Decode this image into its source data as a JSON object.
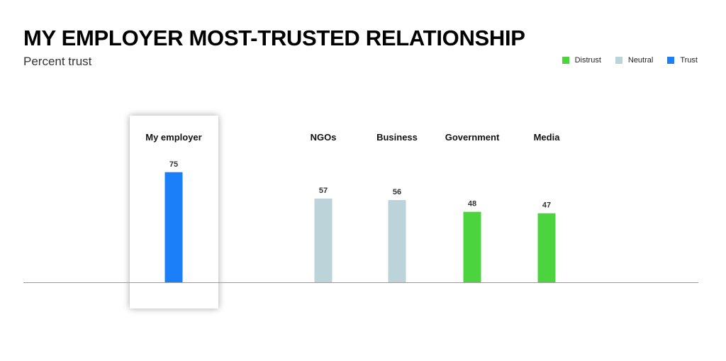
{
  "chart_data": {
    "type": "bar",
    "title": "MY EMPLOYER MOST-TRUSTED RELATIONSHIP",
    "subtitle": "Percent trust",
    "categories": [
      "My employer",
      "NGOs",
      "Business",
      "Government",
      "Media"
    ],
    "values": [
      75,
      57,
      56,
      48,
      47
    ],
    "value_labels": [
      "75",
      "57",
      "56",
      "48",
      "47"
    ],
    "bar_classes": [
      "Trust",
      "Neutral",
      "Neutral",
      "Distrust",
      "Distrust"
    ],
    "legend": [
      {
        "name": "Distrust",
        "color": "#4cd43f"
      },
      {
        "name": "Neutral",
        "color": "#bdd3da"
      },
      {
        "name": "Trust",
        "color": "#1a7ff8"
      }
    ],
    "legend_position": "top-right",
    "highlighted_category": "My employer",
    "ylim": [
      0,
      100
    ],
    "grid": false,
    "xlabel": "",
    "ylabel": ""
  }
}
